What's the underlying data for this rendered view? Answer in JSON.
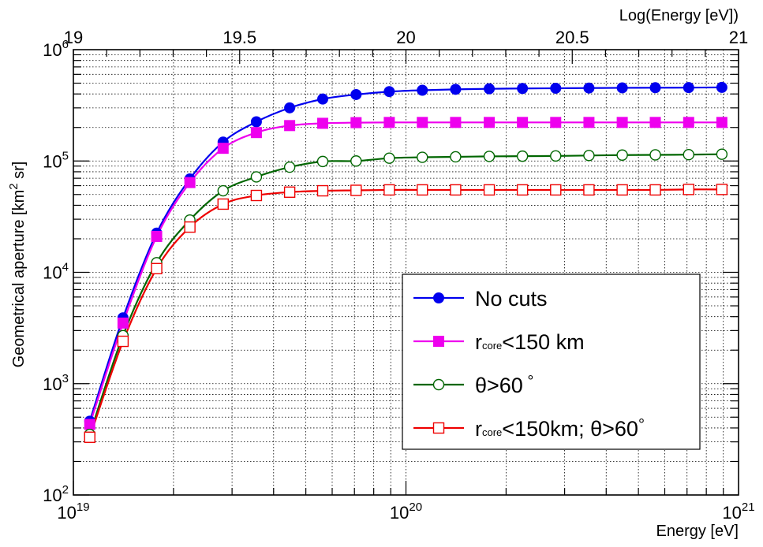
{
  "chart_data": {
    "type": "line",
    "xlabel": "Energy [eV]",
    "x2label": "Log(Energy [eV])",
    "ylabel": "Geometrical aperture [km",
    "ylabel_sup": "2",
    "ylabel_tail": " sr]",
    "x_scale": "log",
    "y_scale": "log",
    "xlim": [
      1e+19,
      1e+21
    ],
    "ylim": [
      100,
      1000000
    ],
    "x2lim": [
      19,
      21
    ],
    "grid": true,
    "legend_position": "bottom-right",
    "x_tick_labels": [
      {
        "value": 1e+19,
        "base": "10",
        "exp": "19"
      },
      {
        "value": 1e+20,
        "base": "10",
        "exp": "20"
      },
      {
        "value": 1e+21,
        "base": "10",
        "exp": "21"
      }
    ],
    "y_tick_labels": [
      {
        "value": 100,
        "base": "10",
        "exp": "2"
      },
      {
        "value": 1000,
        "base": "10",
        "exp": "3"
      },
      {
        "value": 10000,
        "base": "10",
        "exp": "4"
      },
      {
        "value": 100000,
        "base": "10",
        "exp": "5"
      },
      {
        "value": 1000000,
        "base": "10",
        "exp": "6"
      }
    ],
    "x2_tick_labels": [
      {
        "value": 19,
        "label": "19"
      },
      {
        "value": 19.5,
        "label": "19.5"
      },
      {
        "value": 20,
        "label": "20"
      },
      {
        "value": 20.5,
        "label": "20.5"
      },
      {
        "value": 21,
        "label": "21"
      }
    ],
    "x": [
      1.12e+19,
      1.41e+19,
      1.78e+19,
      2.24e+19,
      2.82e+19,
      3.55e+19,
      4.47e+19,
      5.62e+19,
      7.08e+19,
      8.91e+19,
      1.12e+20,
      1.41e+20,
      1.78e+20,
      2.24e+20,
      2.82e+20,
      3.55e+20,
      4.47e+20,
      5.62e+20,
      7.08e+20,
      8.91e+20
    ],
    "series": [
      {
        "name": "No cuts",
        "name_parts": {
          "main": "No cuts"
        },
        "color": "#0000ee",
        "marker": "filled-circle",
        "values": [
          460,
          3900,
          22500,
          69000,
          148000,
          225000,
          300000,
          360000,
          395000,
          420000,
          432000,
          440000,
          445000,
          448000,
          450000,
          452000,
          454000,
          455000,
          456000,
          458000
        ]
      },
      {
        "name": "r core <150 km",
        "name_parts": {
          "pre": "r",
          "sub": "core",
          "post": "<150 km"
        },
        "color": "#ee00ee",
        "marker": "filled-square",
        "values": [
          430,
          3500,
          21000,
          64000,
          130000,
          180000,
          208000,
          218000,
          221000,
          222000,
          222000,
          222000,
          222000,
          222000,
          222000,
          222000,
          222000,
          222000,
          222000,
          222000
        ]
      },
      {
        "name": "θ>60 °",
        "name_parts": {
          "main": "θ>60",
          "deg": "°"
        },
        "color": "#006600",
        "marker": "open-circle",
        "values": [
          350,
          2700,
          12200,
          29500,
          54000,
          72000,
          88000,
          99000,
          100000,
          106000,
          108000,
          109000,
          110000,
          110500,
          111000,
          112000,
          113000,
          113500,
          114000,
          115000
        ]
      },
      {
        "name": "r core <150km; θ>60°",
        "name_parts": {
          "pre": "r",
          "sub": "core",
          "post": "<150km; θ>60",
          "deg": "°"
        },
        "color": "#ee0000",
        "marker": "open-square",
        "values": [
          330,
          2400,
          10800,
          25500,
          41000,
          49000,
          52500,
          54000,
          54500,
          55000,
          55000,
          55000,
          55000,
          55000,
          55000,
          55000,
          55000,
          55000,
          55500,
          55500
        ]
      }
    ]
  }
}
